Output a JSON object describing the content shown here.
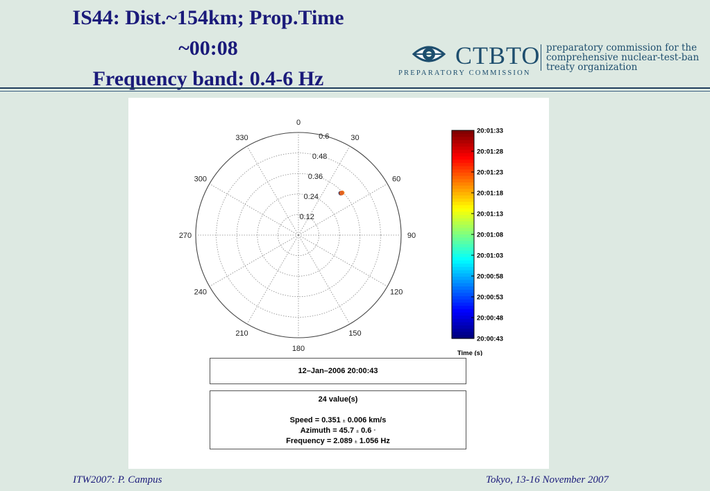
{
  "slide": {
    "title_lines": [
      "IS44: Dist.~154km; Prop.Time",
      "~00:08",
      "Frequency band: 0.4-6 Hz"
    ],
    "title_color": "#1a1a7a",
    "background_color": "#dde9e2"
  },
  "logo": {
    "name": "CTBTO",
    "subtitle": "PREPARATORY COMMISSION",
    "tagline_lines": [
      "preparatory commission for the",
      "comprehensive nuclear-test-ban",
      "treaty organization"
    ],
    "color": "#1e4e6e",
    "icon": "eye-logo-icon"
  },
  "chart_data": {
    "type": "scatter",
    "coordinate_system": "polar",
    "angle_ticks": [
      0,
      30,
      60,
      90,
      120,
      150,
      180,
      210,
      240,
      270,
      300,
      330
    ],
    "radial_ticks": [
      0.12,
      0.24,
      0.36,
      0.48,
      0.6
    ],
    "rlim": [
      0,
      0.6
    ],
    "grid": true,
    "points": [
      {
        "azimuth": 45.2,
        "r": 0.348,
        "color": "#1a1a4a"
      },
      {
        "azimuth": 45.6,
        "r": 0.352,
        "color": "#d04020"
      },
      {
        "azimuth": 46.0,
        "r": 0.356,
        "color": "#f08020"
      },
      {
        "azimuth": 45.7,
        "r": 0.351,
        "color": "#e06020"
      }
    ],
    "colorbar": {
      "label": "Time (s)",
      "ticks": [
        "20:01:33",
        "20:01:28",
        "20:01:23",
        "20:01:18",
        "20:01:13",
        "20:01:08",
        "20:01:03",
        "20:00:58",
        "20:00:53",
        "20:00:48",
        "20:00:43"
      ],
      "colormap": "jet"
    }
  },
  "info": {
    "date": "12–Jan–2006 20:00:43",
    "count": "24 value(s)",
    "speed": {
      "label": "Speed = 0.351",
      "pm": "±",
      "value": "0.006 km/s"
    },
    "azimuth": {
      "label": "Azimuth = 45.7",
      "pm": "±",
      "value": "0.6",
      "unit": "°"
    },
    "frequency": {
      "label": "Frequency = 2.089",
      "pm": "±",
      "value": "1.056 Hz"
    }
  },
  "footer": {
    "left": "ITW2007: P. Campus",
    "right": "Tokyo, 13-16 November 2007"
  }
}
